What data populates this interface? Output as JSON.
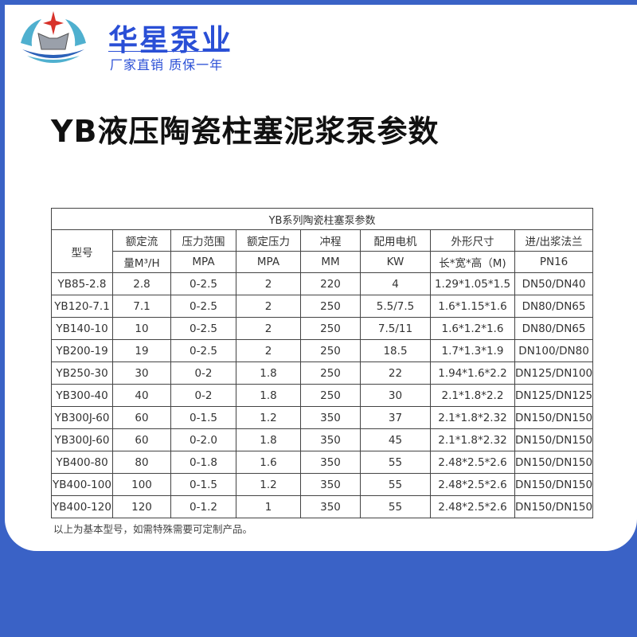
{
  "brand": {
    "name": "华星泵业",
    "slogan": "厂家直销 质保一年"
  },
  "title": "YB液压陶瓷柱塞泥浆泵参数",
  "table": {
    "caption": "YB系列陶瓷柱塞泵参数",
    "headers": [
      [
        "型号",
        ""
      ],
      [
        "额定流",
        "量M³/H"
      ],
      [
        "压力范围",
        "MPA"
      ],
      [
        "额定压力",
        "MPA"
      ],
      [
        "冲程",
        "MM"
      ],
      [
        "配用电机",
        "KW"
      ],
      [
        "外形尺寸",
        "长*宽*高（M)"
      ],
      [
        "进/出浆法兰",
        "PN16"
      ]
    ],
    "rows": [
      [
        "YB85-2.8",
        "2.8",
        "0-2.5",
        "2",
        "220",
        "4",
        "1.29*1.05*1.5",
        "DN50/DN40"
      ],
      [
        "YB120-7.1",
        "7.1",
        "0-2.5",
        "2",
        "250",
        "5.5/7.5",
        "1.6*1.15*1.6",
        "DN80/DN65"
      ],
      [
        "YB140-10",
        "10",
        "0-2.5",
        "2",
        "250",
        "7.5/11",
        "1.6*1.2*1.6",
        "DN80/DN65"
      ],
      [
        "YB200-19",
        "19",
        "0-2.5",
        "2",
        "250",
        "18.5",
        "1.7*1.3*1.9",
        "DN100/DN80"
      ],
      [
        "YB250-30",
        "30",
        "0-2",
        "1.8",
        "250",
        "22",
        "1.94*1.6*2.2",
        "DN125/DN100"
      ],
      [
        "YB300-40",
        "40",
        "0-2",
        "1.8",
        "250",
        "30",
        "2.1*1.8*2.2",
        "DN125/DN125"
      ],
      [
        "YB300J-60",
        "60",
        "0-1.5",
        "1.2",
        "350",
        "37",
        "2.1*1.8*2.32",
        "DN150/DN150"
      ],
      [
        "YB300J-60",
        "60",
        "0-2.0",
        "1.8",
        "350",
        "45",
        "2.1*1.8*2.32",
        "DN150/DN150"
      ],
      [
        "YB400-80",
        "80",
        "0-1.8",
        "1.6",
        "350",
        "55",
        "2.48*2.5*2.6",
        "DN150/DN150"
      ],
      [
        "YB400-100",
        "100",
        "0-1.5",
        "1.2",
        "350",
        "55",
        "2.48*2.5*2.6",
        "DN150/DN150"
      ],
      [
        "YB400-120",
        "120",
        "0-1.2",
        "1",
        "350",
        "55",
        "2.48*2.5*2.6",
        "DN150/DN150"
      ]
    ]
  },
  "note": "以上为基本型号，如需特殊需要可定制产品。",
  "colors": {
    "background": "#3a62c6",
    "brand": "#2a4fd6"
  }
}
